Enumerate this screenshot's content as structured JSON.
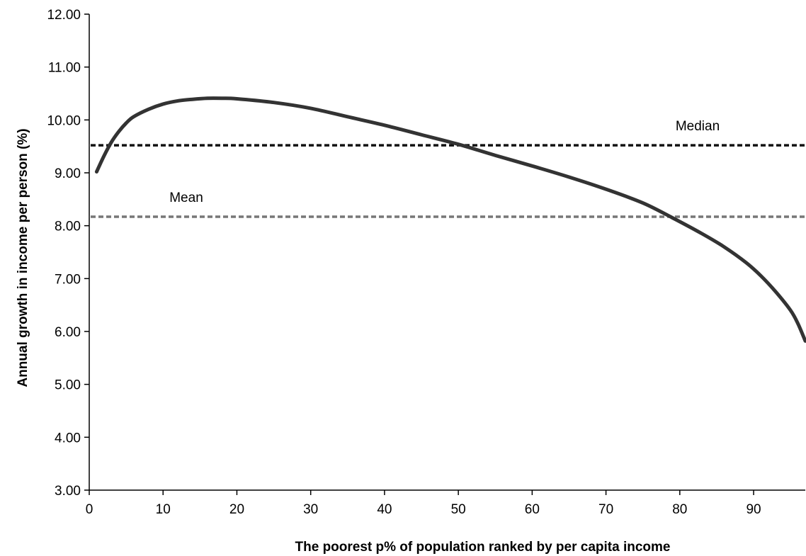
{
  "chart_data": {
    "type": "line",
    "title": "",
    "xlabel": "The poorest p% of population ranked by per capita income",
    "ylabel": "Annual growth in income per person (%)",
    "xlim": [
      0,
      97
    ],
    "ylim": [
      3,
      12
    ],
    "x_ticks": [
      "0",
      "10",
      "20",
      "30",
      "40",
      "50",
      "60",
      "70",
      "80",
      "90"
    ],
    "y_ticks": [
      "3.00",
      "4.00",
      "5.00",
      "6.00",
      "7.00",
      "8.00",
      "9.00",
      "10.00",
      "11.00",
      "12.00"
    ],
    "grid": false,
    "series": [
      {
        "x": [
          1,
          2,
          3,
          4,
          5,
          6,
          8,
          10,
          12,
          14,
          16,
          18,
          20,
          25,
          30,
          35,
          40,
          45,
          50,
          55,
          60,
          65,
          70,
          75,
          79,
          83,
          86,
          89,
          91,
          93,
          95,
          96,
          97
        ],
        "y": [
          9.02,
          9.32,
          9.58,
          9.78,
          9.94,
          10.06,
          10.2,
          10.3,
          10.36,
          10.39,
          10.41,
          10.41,
          10.4,
          10.33,
          10.22,
          10.06,
          9.9,
          9.72,
          9.54,
          9.33,
          9.13,
          8.92,
          8.69,
          8.43,
          8.15,
          7.85,
          7.6,
          7.3,
          7.05,
          6.75,
          6.4,
          6.15,
          5.82
        ],
        "color": "#333333"
      }
    ],
    "reference_lines": [
      {
        "label": "Median",
        "y": 9.52,
        "color": "#111111"
      },
      {
        "label": "Mean",
        "y": 8.17,
        "color": "#777777"
      }
    ]
  }
}
